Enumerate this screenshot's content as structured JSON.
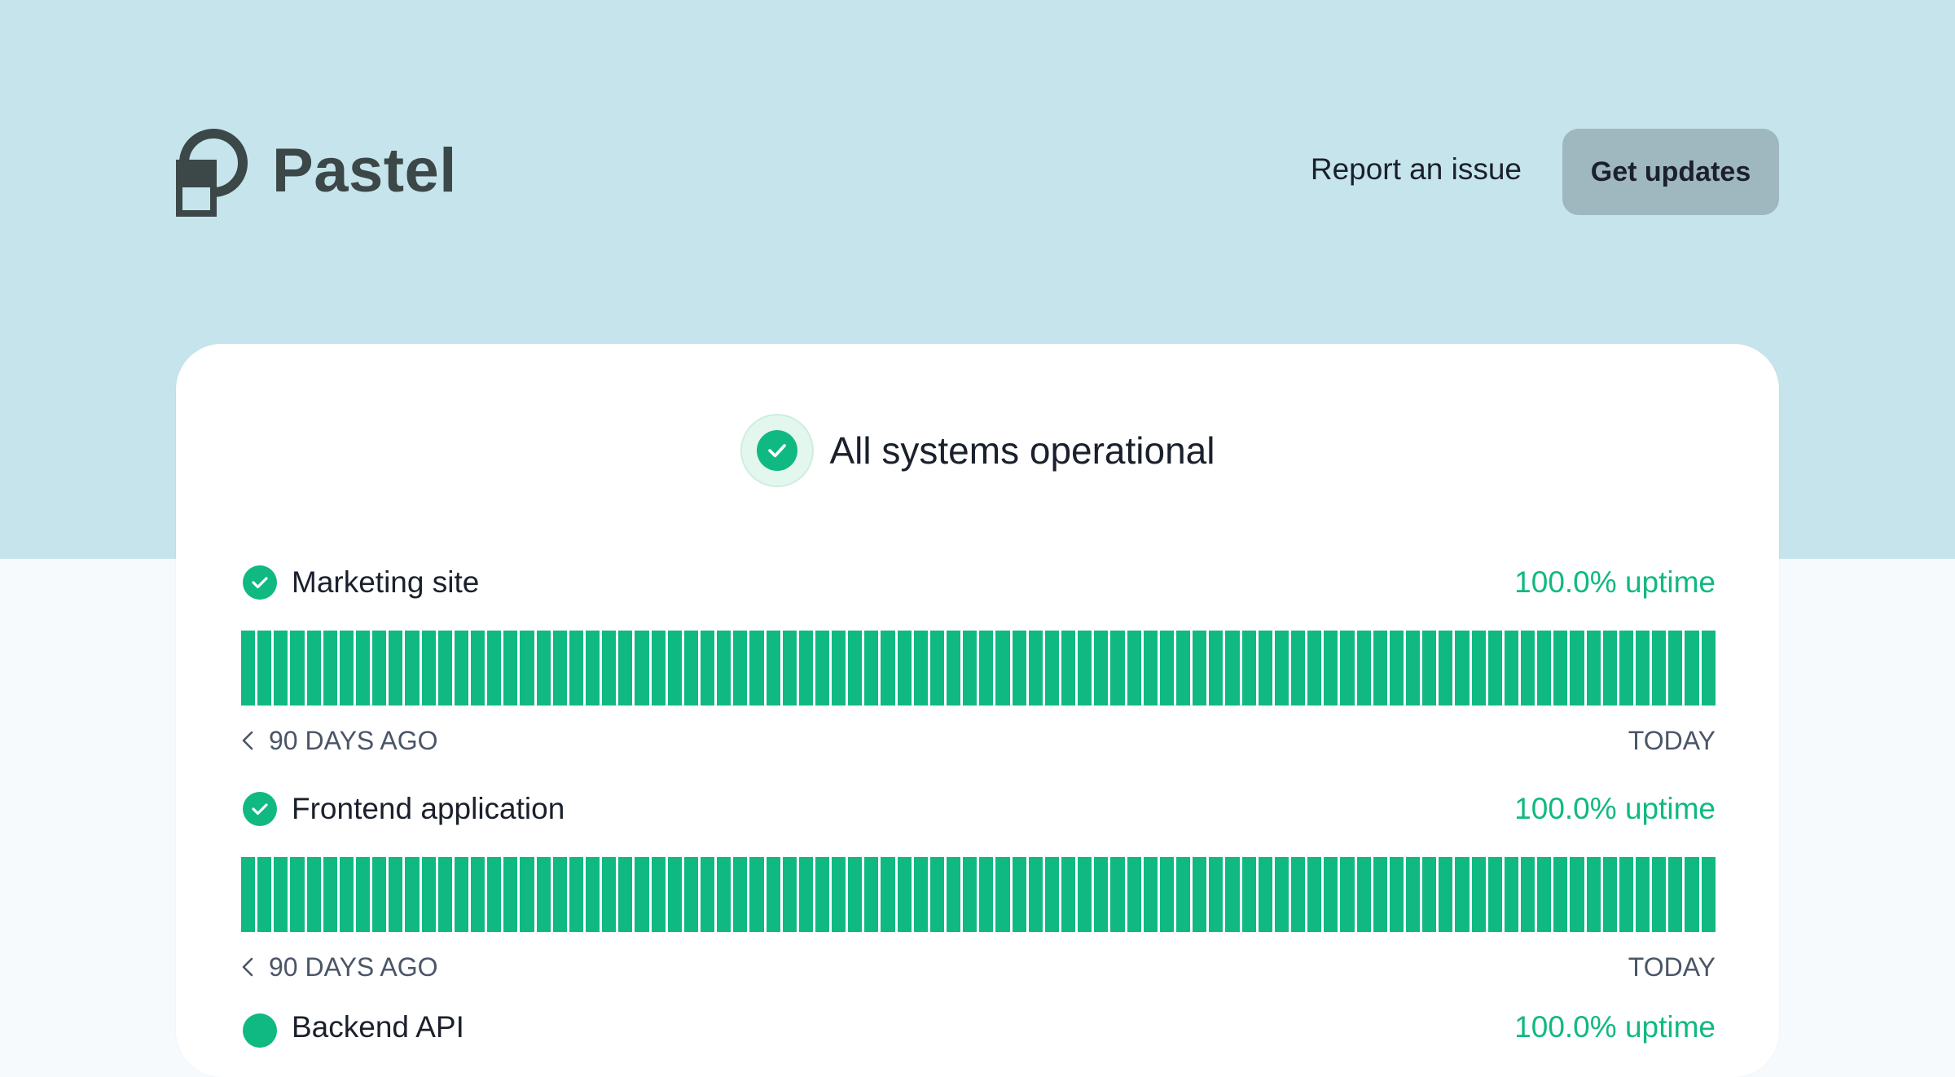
{
  "brand": {
    "name": "Pastel"
  },
  "header": {
    "report_label": "Report an issue",
    "updates_label": "Get updates"
  },
  "status": {
    "overall_text": "All systems operational"
  },
  "colors": {
    "hero_bg": "#c6e4ec",
    "accent_green": "#10b981",
    "button_bg": "#9fb7bf"
  },
  "components": [
    {
      "name": "Marketing site",
      "uptime": "100.0% uptime",
      "days_ago_label": "90 DAYS AGO",
      "today_label": "TODAY",
      "bar_days": 90,
      "bar_status": "operational"
    },
    {
      "name": "Frontend application",
      "uptime": "100.0% uptime",
      "days_ago_label": "90 DAYS AGO",
      "today_label": "TODAY",
      "bar_days": 90,
      "bar_status": "operational"
    },
    {
      "name": "Backend API",
      "uptime": "100.0% uptime"
    }
  ],
  "icons": {
    "logo": "pastel-logo-icon",
    "status_check": "check-circle-icon",
    "chevron": "chevron-left-icon"
  }
}
